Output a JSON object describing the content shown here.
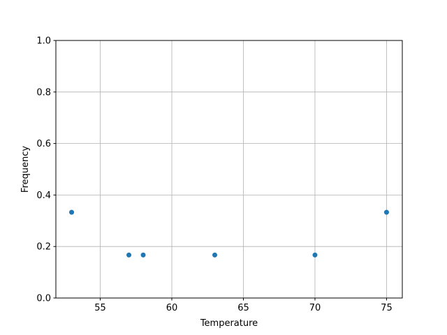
{
  "chart_data": {
    "type": "scatter",
    "title": "",
    "xlabel": "Temperature",
    "ylabel": "Frequency",
    "xlim": [
      51.9,
      76.1
    ],
    "ylim": [
      0,
      1
    ],
    "grid": true,
    "x_ticks": [
      55,
      60,
      65,
      70,
      75
    ],
    "y_ticks": [
      0.0,
      0.2,
      0.4,
      0.6,
      0.8,
      1.0
    ],
    "x_tick_labels": [
      "55",
      "60",
      "65",
      "70",
      "75"
    ],
    "y_tick_labels": [
      "0.0",
      "0.2",
      "0.4",
      "0.6",
      "0.8",
      "1.0"
    ],
    "points": [
      {
        "x": 53,
        "y": 0.333
      },
      {
        "x": 57,
        "y": 0.167
      },
      {
        "x": 58,
        "y": 0.167
      },
      {
        "x": 63,
        "y": 0.167
      },
      {
        "x": 70,
        "y": 0.167
      },
      {
        "x": 75,
        "y": 0.333
      }
    ],
    "marker_color": "#1f77b4",
    "grid_color": "#b0b0b0"
  }
}
